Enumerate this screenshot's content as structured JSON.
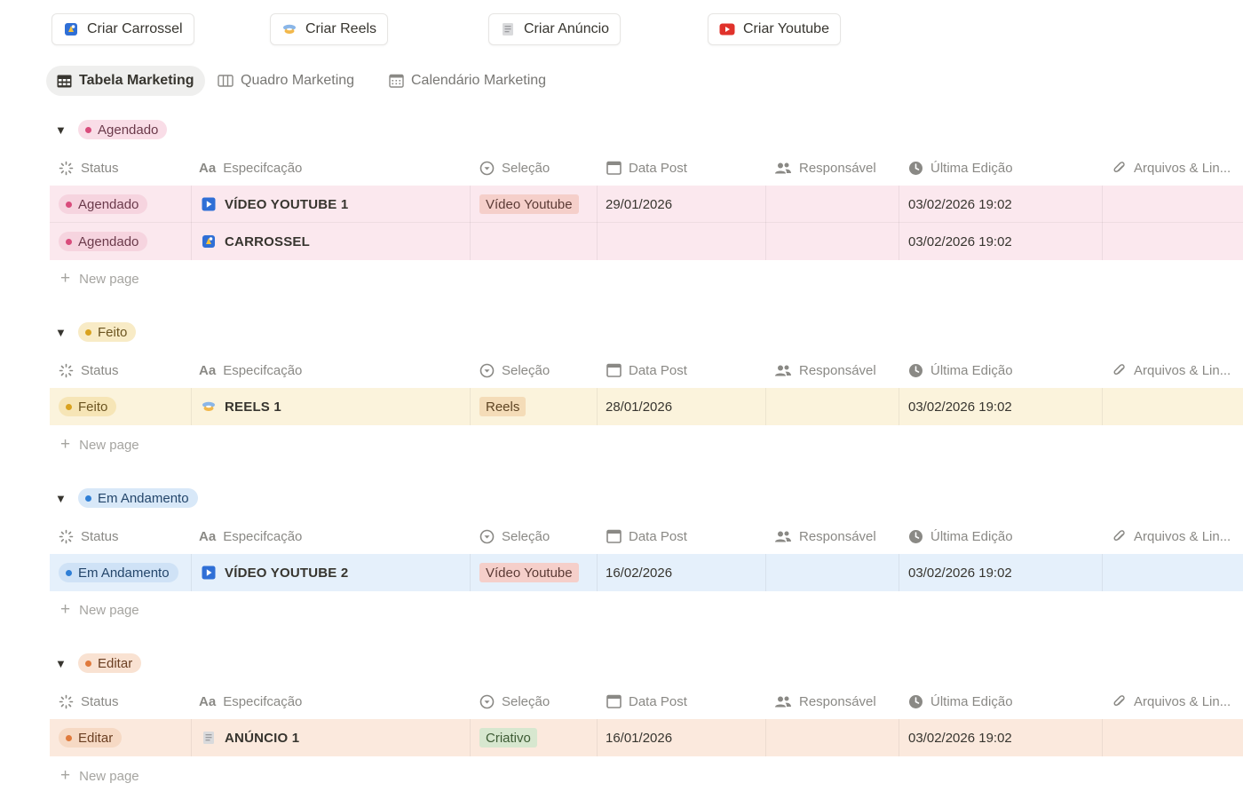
{
  "top_buttons": [
    {
      "label": "Criar Carrossel",
      "icon": "carousel-icon"
    },
    {
      "label": "Criar Reels",
      "icon": "reels-icon"
    },
    {
      "label": "Criar Anúncio",
      "icon": "ad-icon"
    },
    {
      "label": "Criar Youtube",
      "icon": "youtube-icon"
    }
  ],
  "tabs": [
    {
      "label": "Tabela Marketing",
      "icon": "table-icon",
      "active": true
    },
    {
      "label": "Quadro Marketing",
      "icon": "board-icon",
      "active": false
    },
    {
      "label": "Calendário Marketing",
      "icon": "calendar-icon",
      "active": false
    }
  ],
  "columns": {
    "status": "Status",
    "especificacao": "Especifcação",
    "selecao": "Seleção",
    "data_post": "Data Post",
    "responsavel": "Responsável",
    "ultima_edicao": "Última Edição",
    "arquivos": "Arquivos & Lin..."
  },
  "new_page_label": "New page",
  "colors": {
    "agendado_row": "#fbe8ee",
    "feito_row": "#fbf3dc",
    "andamento_row": "#e5f0fb",
    "editar_row": "#fbe9dd",
    "video_tag": "#f5cfca",
    "reels_tag": "#f4dcb8",
    "criativo_tag": "#d7e7cf"
  },
  "groups": [
    {
      "status": "Agendado",
      "rows": [
        {
          "status": "Agendado",
          "name": "VÍDEO YOUTUBE 1",
          "icon": "youtube-play-icon",
          "selecao": "Vídeo Youtube",
          "data_post": "29/01/2026",
          "responsavel": "",
          "ultima_edicao": "03/02/2026 19:02"
        },
        {
          "status": "Agendado",
          "name": "CARROSSEL",
          "icon": "carousel-icon",
          "selecao": "",
          "data_post": "",
          "responsavel": "",
          "ultima_edicao": "03/02/2026 19:02"
        }
      ]
    },
    {
      "status": "Feito",
      "rows": [
        {
          "status": "Feito",
          "name": "REELS 1",
          "icon": "reels-icon",
          "selecao": "Reels",
          "data_post": "28/01/2026",
          "responsavel": "",
          "ultima_edicao": "03/02/2026 19:02"
        }
      ]
    },
    {
      "status": "Em Andamento",
      "rows": [
        {
          "status": "Em Andamento",
          "name": "VÍDEO YOUTUBE 2",
          "icon": "youtube-play-icon",
          "selecao": "Vídeo Youtube",
          "data_post": "16/02/2026",
          "responsavel": "",
          "ultima_edicao": "03/02/2026 19:02"
        }
      ]
    },
    {
      "status": "Editar",
      "rows": [
        {
          "status": "Editar",
          "name": "ANÚNCIO 1",
          "icon": "ad-icon",
          "selecao": "Criativo",
          "data_post": "16/01/2026",
          "responsavel": "",
          "ultima_edicao": "03/02/2026 19:02"
        }
      ]
    }
  ]
}
